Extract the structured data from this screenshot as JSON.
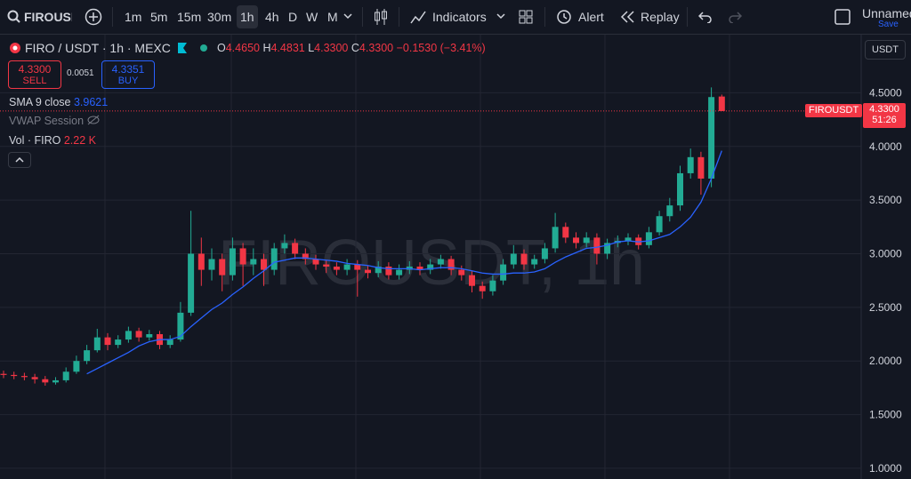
{
  "toolbar": {
    "symbol": "FIROUSDT",
    "intervals": [
      "1m",
      "5m",
      "15m",
      "30m",
      "1h",
      "4h",
      "D",
      "W",
      "M"
    ],
    "indicators": "Indicators",
    "alert": "Alert",
    "replay": "Replay",
    "layout": "Unnamed",
    "save": "Save"
  },
  "legend": {
    "title": "FIRO / USDT · 1h · MEXC",
    "o_label": "O",
    "open": "4.4650",
    "h_label": "H",
    "high": "4.4831",
    "l_label": "L",
    "low": "4.3300",
    "c_label": "C",
    "close": "4.3300",
    "change": "−0.1530 (−3.41%)",
    "sell_price": "4.3300",
    "sell": "SELL",
    "spread": "0.0051",
    "buy_price": "4.3351",
    "buy": "BUY",
    "sma_name": "SMA 9 close",
    "sma_value": "3.9621",
    "vwap": "VWAP Session",
    "vol_name": "Vol · FIRO",
    "vol_value": "2.22 K"
  },
  "currency": "USDT",
  "watermark": "FIROUSDT, 1h",
  "price_tag": {
    "symbol": "FIROUSDT",
    "price": "4.3300",
    "countdown": "51:26"
  },
  "chart_data": {
    "type": "candlestick",
    "up_color": "#22ab94",
    "down_color": "#f23645",
    "sma_color": "#2962ff",
    "grid": true,
    "ylim": [
      0.9,
      5.05
    ],
    "yticks": [
      {
        "value": 1,
        "label": "1.0000"
      },
      {
        "value": 1.5,
        "label": "1.5000"
      },
      {
        "value": 2,
        "label": "2.0000"
      },
      {
        "value": 2.5,
        "label": "2.5000"
      },
      {
        "value": 3,
        "label": "3.0000"
      },
      {
        "value": 3.5,
        "label": "3.5000"
      },
      {
        "value": 4,
        "label": "4.0000"
      },
      {
        "value": 4.5,
        "label": "4.5000"
      }
    ],
    "open": [
      1.88,
      1.87,
      1.86,
      1.85,
      1.83,
      1.8,
      1.82,
      1.9,
      2.0,
      2.1,
      2.22,
      2.15,
      2.2,
      2.28,
      2.22,
      2.25,
      2.15,
      2.2,
      2.45,
      3.0,
      2.85,
      2.95,
      2.8,
      3.05,
      2.9,
      2.95,
      2.85,
      3.05,
      3.1,
      3.0,
      2.95,
      2.9,
      2.88,
      2.85,
      2.9,
      2.85,
      2.82,
      2.88,
      2.8,
      2.85,
      2.88,
      2.85,
      2.9,
      2.95,
      2.85,
      2.8,
      2.7,
      2.65,
      2.75,
      2.9,
      3.0,
      2.9,
      2.95,
      3.05,
      3.25,
      3.15,
      3.1,
      3.15,
      3.0,
      3.1,
      3.12,
      3.15,
      3.08,
      3.2,
      3.35,
      3.45,
      3.75,
      3.9,
      3.7,
      4.465
    ],
    "high": [
      1.91,
      1.9,
      1.89,
      1.88,
      1.86,
      1.85,
      1.94,
      2.05,
      2.15,
      2.3,
      2.26,
      2.24,
      2.32,
      2.31,
      2.29,
      2.28,
      2.24,
      2.55,
      3.4,
      3.15,
      3.05,
      3.0,
      3.15,
      3.1,
      3.05,
      3.0,
      3.1,
      3.18,
      3.14,
      3.05,
      2.99,
      2.94,
      2.92,
      2.95,
      2.94,
      2.89,
      2.93,
      2.92,
      2.9,
      2.93,
      2.92,
      2.95,
      2.99,
      2.98,
      2.89,
      2.84,
      2.74,
      2.8,
      2.95,
      3.08,
      3.04,
      2.99,
      3.1,
      3.38,
      3.29,
      3.2,
      3.2,
      3.19,
      3.14,
      3.17,
      3.19,
      3.18,
      3.25,
      3.4,
      3.52,
      3.82,
      3.98,
      3.95,
      4.55,
      4.4831
    ],
    "low": [
      1.84,
      1.83,
      1.82,
      1.79,
      1.77,
      1.78,
      1.8,
      1.88,
      1.97,
      2.08,
      2.1,
      2.12,
      2.17,
      2.18,
      2.19,
      2.11,
      2.12,
      2.18,
      2.42,
      2.7,
      2.75,
      2.65,
      2.75,
      2.7,
      2.8,
      2.7,
      2.8,
      3.0,
      2.95,
      2.9,
      2.85,
      2.82,
      2.8,
      2.8,
      2.6,
      2.77,
      2.78,
      2.76,
      2.76,
      2.81,
      2.8,
      2.81,
      2.86,
      2.8,
      2.75,
      2.64,
      2.58,
      2.61,
      2.71,
      2.86,
      2.85,
      2.86,
      2.91,
      3.01,
      3.1,
      3.05,
      3.06,
      2.9,
      2.95,
      3.06,
      3.08,
      3.04,
      3.05,
      3.17,
      3.3,
      3.4,
      3.7,
      3.55,
      3.62,
      4.33
    ],
    "close": [
      1.87,
      1.86,
      1.85,
      1.83,
      1.8,
      1.82,
      1.9,
      2.0,
      2.1,
      2.22,
      2.15,
      2.2,
      2.28,
      2.22,
      2.25,
      2.15,
      2.2,
      2.45,
      3.0,
      2.85,
      2.95,
      2.8,
      3.05,
      2.9,
      2.95,
      2.85,
      3.05,
      3.1,
      3.0,
      2.95,
      2.9,
      2.88,
      2.85,
      2.9,
      2.85,
      2.82,
      2.88,
      2.8,
      2.85,
      2.88,
      2.85,
      2.9,
      2.95,
      2.85,
      2.8,
      2.7,
      2.65,
      2.75,
      2.9,
      3.0,
      2.9,
      2.95,
      3.05,
      3.25,
      3.15,
      3.1,
      3.15,
      3.0,
      3.1,
      3.12,
      3.15,
      3.08,
      3.2,
      3.35,
      3.45,
      3.75,
      3.9,
      3.7,
      4.46,
      4.33
    ],
    "sma": [
      null,
      null,
      null,
      null,
      null,
      null,
      null,
      null,
      1.88,
      1.93,
      1.98,
      2.03,
      2.08,
      2.14,
      2.18,
      2.2,
      2.2,
      2.23,
      2.32,
      2.4,
      2.48,
      2.54,
      2.62,
      2.69,
      2.77,
      2.84,
      2.92,
      2.94,
      2.96,
      2.96,
      2.95,
      2.94,
      2.93,
      2.91,
      2.9,
      2.89,
      2.87,
      2.86,
      2.86,
      2.86,
      2.85,
      2.86,
      2.87,
      2.87,
      2.86,
      2.84,
      2.82,
      2.81,
      2.81,
      2.82,
      2.82,
      2.83,
      2.86,
      2.92,
      2.97,
      3.01,
      3.05,
      3.06,
      3.08,
      3.11,
      3.12,
      3.11,
      3.12,
      3.15,
      3.18,
      3.25,
      3.34,
      3.48,
      3.7,
      3.96
    ]
  }
}
